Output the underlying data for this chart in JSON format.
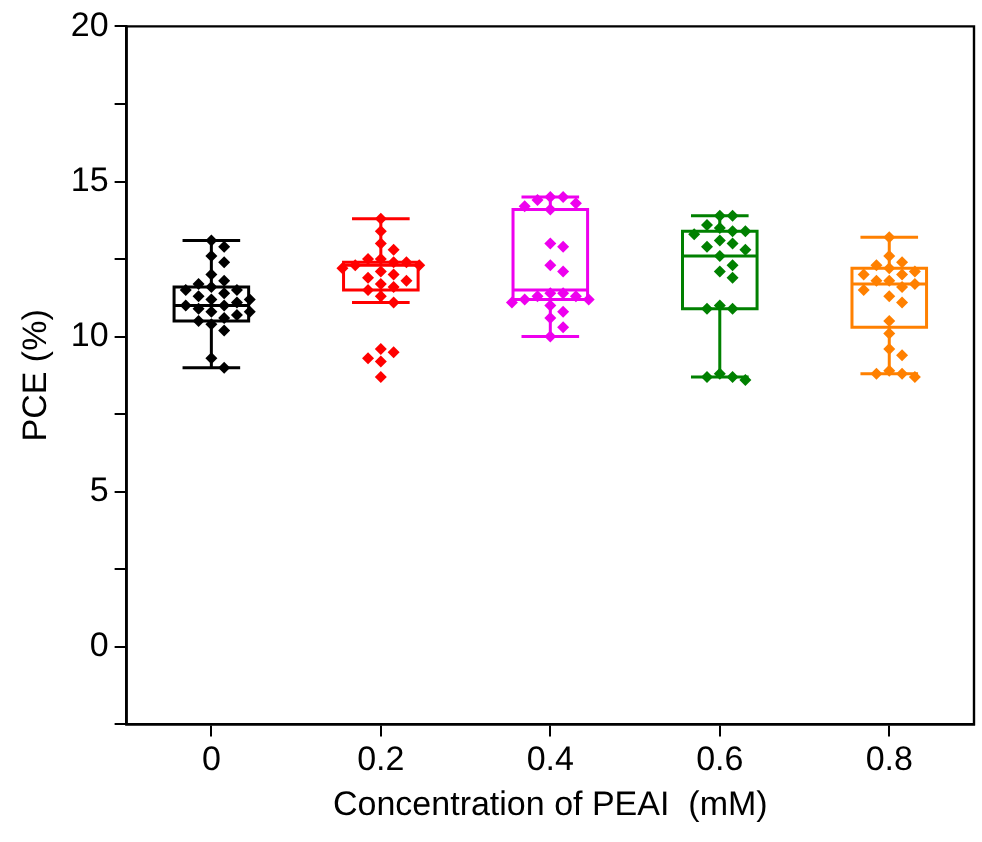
{
  "chart_data": {
    "type": "box",
    "xlabel": "Concentration of PEAI  (mM)",
    "ylabel": "PCE (%)",
    "categories": [
      "0",
      "0.2",
      "0.4",
      "0.6",
      "0.8"
    ],
    "colors": [
      "#000000",
      "#ff0000",
      "#ee00ee",
      "#008000",
      "#ff8000"
    ],
    "boxes": [
      {
        "low": 9.0,
        "q1": 10.5,
        "median": 11.0,
        "q3": 11.6,
        "high": 13.1
      },
      {
        "low": 11.1,
        "q1": 11.5,
        "median": 12.3,
        "q3": 12.4,
        "high": 13.8
      },
      {
        "low": 10.0,
        "q1": 11.2,
        "median": 11.5,
        "q3": 14.1,
        "high": 14.5
      },
      {
        "low": 8.7,
        "q1": 10.9,
        "median": 12.6,
        "q3": 13.4,
        "high": 13.9
      },
      {
        "low": 8.8,
        "q1": 10.3,
        "median": 11.7,
        "q3": 12.2,
        "high": 13.2
      }
    ],
    "series": [
      {
        "type": "scatter",
        "color": "#000000",
        "x": [
          "0",
          "0",
          "0",
          "0",
          "0",
          "0",
          "0",
          "0",
          "0",
          "0",
          "0",
          "0",
          "0",
          "0",
          "0",
          "0",
          "0",
          "0",
          "0",
          "0",
          "0",
          "0",
          "0",
          "0",
          "0",
          "0",
          "0"
        ],
        "values": [
          13.1,
          12.9,
          12.6,
          12.4,
          12.0,
          11.8,
          11.6,
          11.7,
          11.5,
          11.4,
          11.3,
          11.2,
          11.1,
          11.0,
          11.0,
          10.9,
          10.8,
          10.8,
          10.7,
          10.6,
          10.5,
          10.4,
          10.2,
          9.3,
          9.0,
          11.5,
          11.2
        ]
      },
      {
        "type": "scatter",
        "color": "#ff0000",
        "x": [
          "0.2",
          "0.2",
          "0.2",
          "0.2",
          "0.2",
          "0.2",
          "0.2",
          "0.2",
          "0.2",
          "0.2",
          "0.2",
          "0.2",
          "0.2",
          "0.2",
          "0.2",
          "0.2",
          "0.2",
          "0.2",
          "0.2",
          "0.2",
          "0.2",
          "0.2",
          "0.2",
          "0.2",
          "0.2"
        ],
        "values": [
          13.8,
          13.4,
          13.0,
          12.8,
          12.5,
          12.5,
          12.4,
          12.4,
          12.3,
          12.3,
          12.2,
          12.1,
          12.0,
          11.9,
          11.8,
          11.7,
          11.6,
          11.5,
          11.3,
          11.1,
          9.6,
          9.5,
          9.3,
          9.2,
          8.7
        ]
      },
      {
        "type": "scatter",
        "color": "#ee00ee",
        "x": [
          "0.4",
          "0.4",
          "0.4",
          "0.4",
          "0.4",
          "0.4",
          "0.4",
          "0.4",
          "0.4",
          "0.4",
          "0.4",
          "0.4",
          "0.4",
          "0.4",
          "0.4",
          "0.4",
          "0.4",
          "0.4",
          "0.4",
          "0.4",
          "0.4",
          "0.4"
        ],
        "values": [
          14.5,
          14.5,
          14.4,
          14.3,
          14.2,
          14.1,
          13.0,
          12.9,
          12.3,
          12.1,
          11.4,
          11.4,
          11.3,
          11.3,
          11.2,
          11.2,
          11.1,
          11.0,
          10.8,
          10.6,
          10.3,
          10.0
        ]
      },
      {
        "type": "scatter",
        "color": "#008000",
        "x": [
          "0.6",
          "0.6",
          "0.6",
          "0.6",
          "0.6",
          "0.6",
          "0.6",
          "0.6",
          "0.6",
          "0.6",
          "0.6",
          "0.6",
          "0.6",
          "0.6",
          "0.6",
          "0.6",
          "0.6",
          "0.6",
          "0.6",
          "0.6",
          "0.6",
          "0.6"
        ],
        "values": [
          13.9,
          13.9,
          13.6,
          13.5,
          13.4,
          13.4,
          13.3,
          13.1,
          13.0,
          12.9,
          12.8,
          12.6,
          12.3,
          12.1,
          11.9,
          11.0,
          10.9,
          10.9,
          8.8,
          8.7,
          8.7,
          8.6
        ]
      },
      {
        "type": "scatter",
        "color": "#ff8000",
        "x": [
          "0.8",
          "0.8",
          "0.8",
          "0.8",
          "0.8",
          "0.8",
          "0.8",
          "0.8",
          "0.8",
          "0.8",
          "0.8",
          "0.8",
          "0.8",
          "0.8",
          "0.8",
          "0.8",
          "0.8",
          "0.8",
          "0.8",
          "0.8",
          "0.8",
          "0.8",
          "0.8"
        ],
        "values": [
          13.2,
          12.6,
          12.4,
          12.3,
          12.2,
          12.1,
          12.0,
          12.0,
          11.8,
          11.8,
          11.7,
          11.6,
          11.5,
          11.3,
          11.1,
          10.5,
          10.1,
          9.6,
          9.4,
          8.9,
          8.8,
          8.8,
          8.7
        ]
      }
    ],
    "ylim": [
      -2.5,
      20
    ],
    "yticks": [
      {
        "value": -2.5,
        "label": null
      },
      0,
      {
        "value": 2.5,
        "label": null
      },
      5,
      {
        "value": 7.5,
        "label": null
      },
      10,
      {
        "value": 12.5,
        "label": null
      },
      15,
      {
        "value": 17.5,
        "label": null
      },
      20
    ],
    "marker": "diamond",
    "grid": false,
    "legend": false
  }
}
